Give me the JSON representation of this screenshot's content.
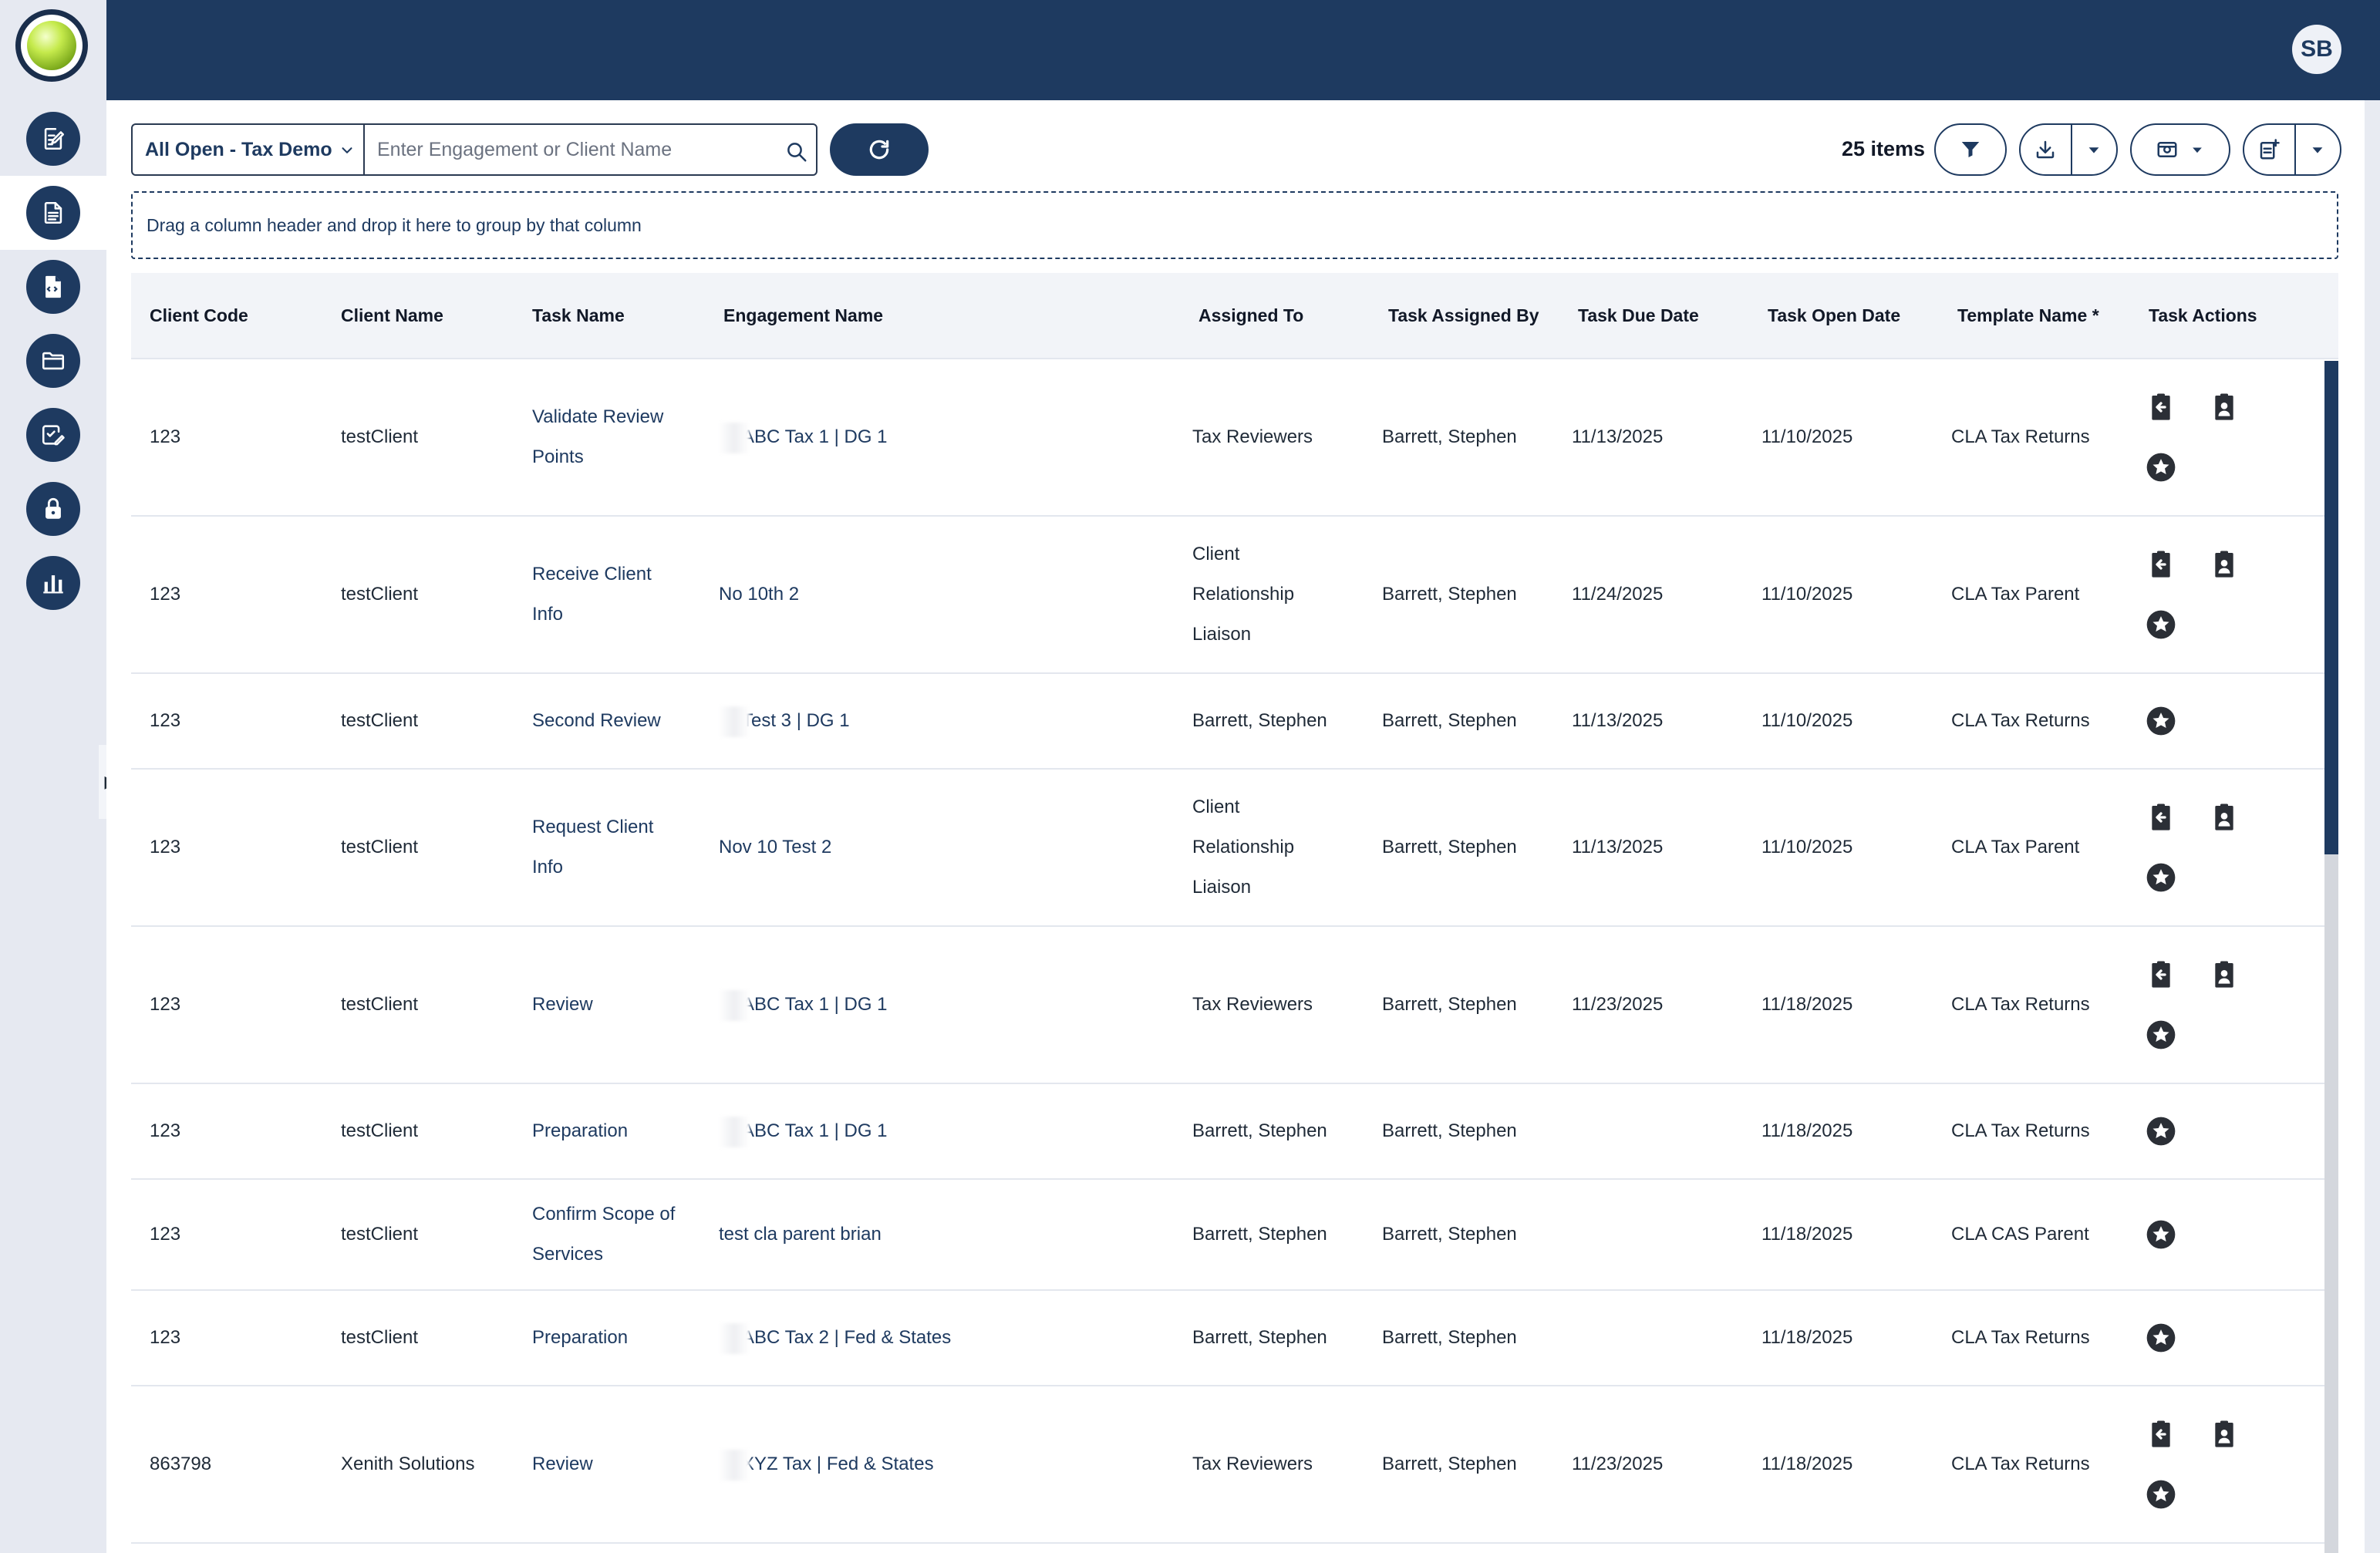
{
  "app": {
    "user_initials": "SB",
    "accent_color": "#1e3a60"
  },
  "sidebar": {
    "items": [
      {
        "icon": "edit-document-icon"
      },
      {
        "icon": "document-icon",
        "active": true
      },
      {
        "icon": "file-code-icon"
      },
      {
        "icon": "folder-icon"
      },
      {
        "icon": "checklist-edit-icon"
      },
      {
        "icon": "lock-icon"
      },
      {
        "icon": "bar-chart-icon"
      }
    ],
    "expand_arrow": "▶"
  },
  "toolbar": {
    "view_selected": "All Open - Tax Demo",
    "search_placeholder": "Enter Engagement or Client Name",
    "items_count": "25 items"
  },
  "group_panel": {
    "text": "Drag a column header and drop it here to group by that column"
  },
  "grid": {
    "columns": [
      "Client Code",
      "Client Name",
      "Task Name",
      "Engagement Name",
      "Assigned To",
      "Task Assigned By",
      "Task Due Date",
      "Task Open Date",
      "Template Name *",
      "Task Actions"
    ],
    "rows": [
      {
        "code": "123",
        "client": "testClient",
        "task": "Validate Review Points",
        "engagement": "ABC Tax 1 | DG 1",
        "eng_blurred": true,
        "assigned_to": "Tax Reviewers",
        "assigned_by": "Barrett, Stephen",
        "due": "11/13/2025",
        "open": "11/10/2025",
        "template": "CLA Tax Returns",
        "actions": "full"
      },
      {
        "code": "123",
        "client": "testClient",
        "task": "Receive Client Info",
        "engagement": "No 10th 2",
        "eng_blurred": false,
        "assigned_to": "Client Relationship Liaison",
        "assigned_by": "Barrett, Stephen",
        "due": "11/24/2025",
        "open": "11/10/2025",
        "template": "CLA Tax Parent",
        "actions": "full"
      },
      {
        "code": "123",
        "client": "testClient",
        "task": "Second Review",
        "engagement": "Test 3 | DG 1",
        "eng_blurred": true,
        "assigned_to": "Barrett, Stephen",
        "assigned_by": "Barrett, Stephen",
        "due": "11/13/2025",
        "open": "11/10/2025",
        "template": "CLA Tax Returns",
        "actions": "star"
      },
      {
        "code": "123",
        "client": "testClient",
        "task": "Request Client Info",
        "engagement": "Nov 10 Test 2",
        "eng_blurred": false,
        "assigned_to": "Client Relationship Liaison",
        "assigned_by": "Barrett, Stephen",
        "due": "11/13/2025",
        "open": "11/10/2025",
        "template": "CLA Tax Parent",
        "actions": "full"
      },
      {
        "code": "123",
        "client": "testClient",
        "task": "Review",
        "engagement": "ABC Tax 1 | DG 1",
        "eng_blurred": true,
        "assigned_to": "Tax Reviewers",
        "assigned_by": "Barrett, Stephen",
        "due": "11/23/2025",
        "open": "11/18/2025",
        "template": "CLA Tax Returns",
        "actions": "full"
      },
      {
        "code": "123",
        "client": "testClient",
        "task": "Preparation",
        "engagement": "ABC Tax 1 | DG 1",
        "eng_blurred": true,
        "assigned_to": "Barrett, Stephen",
        "assigned_by": "Barrett, Stephen",
        "due": "",
        "open": "11/18/2025",
        "template": "CLA Tax Returns",
        "actions": "star"
      },
      {
        "code": "123",
        "client": "testClient",
        "task": "Confirm Scope of Services",
        "engagement": "test cla parent brian",
        "eng_blurred": false,
        "assigned_to": "Barrett, Stephen",
        "assigned_by": "Barrett, Stephen",
        "due": "",
        "open": "11/18/2025",
        "template": "CLA CAS Parent",
        "actions": "star"
      },
      {
        "code": "123",
        "client": "testClient",
        "task": "Preparation",
        "engagement": "ABC Tax 2 | Fed & States",
        "eng_blurred": true,
        "assigned_to": "Barrett, Stephen",
        "assigned_by": "Barrett, Stephen",
        "due": "",
        "open": "11/18/2025",
        "template": "CLA Tax Returns",
        "actions": "star"
      },
      {
        "code": "863798",
        "client": "Xenith Solutions",
        "task": "Review",
        "engagement": "XYZ Tax | Fed & States",
        "eng_blurred": true,
        "assigned_to": "Tax Reviewers",
        "assigned_by": "Barrett, Stephen",
        "due": "11/23/2025",
        "open": "11/18/2025",
        "template": "CLA Tax Returns",
        "actions": "full"
      }
    ]
  }
}
